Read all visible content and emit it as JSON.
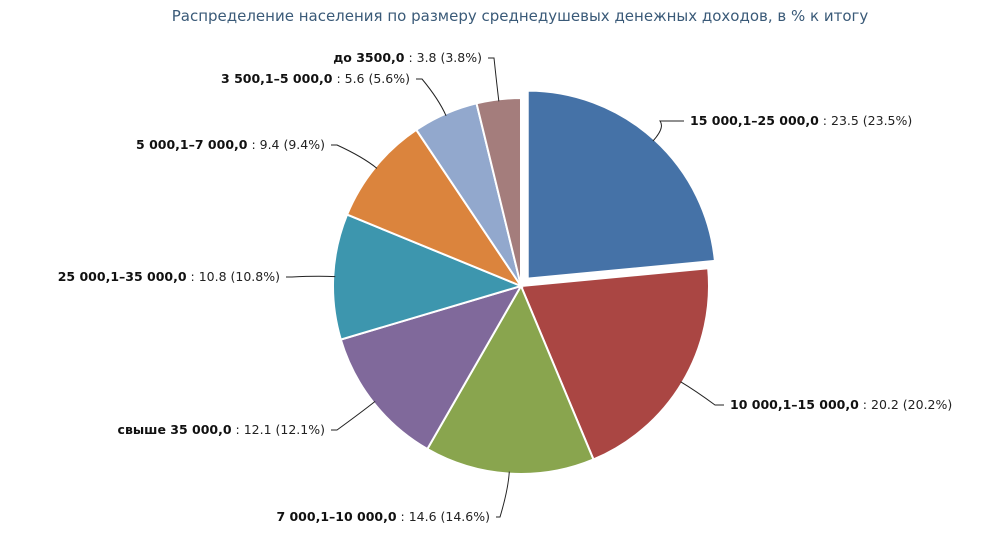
{
  "chart_data": {
    "type": "pie",
    "title": "Распределение населения по размеру среднедушевых денежных доходов, в % к итогу",
    "slices": [
      {
        "name": "15 000,1–25 000,0",
        "value": 23.5,
        "pct": "23.5%",
        "color": "#4572a7",
        "exploded": true
      },
      {
        "name": "10 000,1–15 000,0",
        "value": 20.2,
        "pct": "20.2%",
        "color": "#aa4643"
      },
      {
        "name": "7 000,1–10 000,0",
        "value": 14.6,
        "pct": "14.6%",
        "color": "#89a54e"
      },
      {
        "name": "свыше 35 000,0",
        "value": 12.1,
        "pct": "12.1%",
        "color": "#80699b"
      },
      {
        "name": "25 000,1–35 000,0",
        "value": 10.8,
        "pct": "10.8%",
        "color": "#3d96ae"
      },
      {
        "name": "5 000,1–7 000,0",
        "value": 9.4,
        "pct": "9.4%",
        "color": "#db843d"
      },
      {
        "name": "3 500,1–5 000,0",
        "value": 5.6,
        "pct": "5.6%",
        "color": "#92a8cd"
      },
      {
        "name": "до 3500,0",
        "value": 3.8,
        "pct": "3.8%",
        "color": "#a47d7c"
      }
    ]
  }
}
